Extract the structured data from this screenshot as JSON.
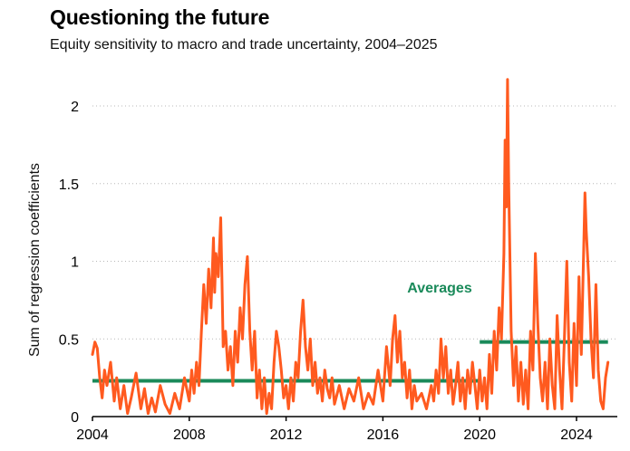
{
  "title": "Questioning the future",
  "subtitle": "Equity sensitivity to macro and trade uncertainty, 2004–2025",
  "chart_data": {
    "type": "line",
    "ylabel": "Sum of regression coefficients",
    "xlim": [
      2004,
      2025.3
    ],
    "ylim": [
      0,
      2.2
    ],
    "x_ticks": [
      2004,
      2008,
      2012,
      2016,
      2020,
      2024
    ],
    "x_tick_labels": [
      "2004",
      "2008",
      "2012",
      "2016",
      "2020",
      "2024"
    ],
    "y_ticks": [
      0,
      0.5,
      1,
      1.5,
      2
    ],
    "y_tick_labels": [
      "0",
      "0.5",
      "1",
      "1.5",
      "2"
    ],
    "grid": "horizontal dotted",
    "annotation": "Averages",
    "colors": {
      "series": "#ff5a1f",
      "averages": "#1a8a5a",
      "annotation": "#1a8a5a"
    },
    "series": [
      {
        "x": [
          2004.0,
          2004.1,
          2004.2,
          2004.3,
          2004.4,
          2004.5,
          2004.6,
          2004.75,
          2004.9,
          2005.0,
          2005.15,
          2005.3,
          2005.45,
          2005.6,
          2005.8,
          2006.0,
          2006.15,
          2006.3,
          2006.45,
          2006.6,
          2006.8,
          2007.0,
          2007.2,
          2007.4,
          2007.6,
          2007.8,
          2008.0,
          2008.1,
          2008.2,
          2008.3,
          2008.4,
          2008.5,
          2008.6,
          2008.7,
          2008.8,
          2008.9,
          2009.0,
          2009.05,
          2009.1,
          2009.2,
          2009.3,
          2009.35,
          2009.4,
          2009.5,
          2009.6,
          2009.7,
          2009.8,
          2009.9,
          2010.0,
          2010.1,
          2010.2,
          2010.3,
          2010.4,
          2010.5,
          2010.6,
          2010.7,
          2010.8,
          2010.9,
          2011.0,
          2011.1,
          2011.2,
          2011.3,
          2011.4,
          2011.5,
          2011.6,
          2011.7,
          2011.8,
          2011.9,
          2012.0,
          2012.1,
          2012.2,
          2012.3,
          2012.4,
          2012.5,
          2012.6,
          2012.7,
          2012.8,
          2012.9,
          2013.0,
          2013.1,
          2013.2,
          2013.3,
          2013.4,
          2013.5,
          2013.6,
          2013.7,
          2013.8,
          2013.9,
          2014.0,
          2014.2,
          2014.4,
          2014.6,
          2014.8,
          2015.0,
          2015.2,
          2015.4,
          2015.6,
          2015.8,
          2016.0,
          2016.15,
          2016.3,
          2016.4,
          2016.5,
          2016.6,
          2016.7,
          2016.8,
          2016.9,
          2017.0,
          2017.1,
          2017.2,
          2017.3,
          2017.4,
          2017.6,
          2017.8,
          2018.0,
          2018.1,
          2018.2,
          2018.3,
          2018.4,
          2018.5,
          2018.6,
          2018.7,
          2018.8,
          2018.9,
          2019.0,
          2019.1,
          2019.2,
          2019.3,
          2019.4,
          2019.5,
          2019.6,
          2019.7,
          2019.8,
          2019.9,
          2020.0,
          2020.1,
          2020.2,
          2020.3,
          2020.4,
          2020.5,
          2020.6,
          2020.7,
          2020.8,
          2020.9,
          2021.0,
          2021.05,
          2021.1,
          2021.15,
          2021.2,
          2021.3,
          2021.4,
          2021.5,
          2021.6,
          2021.7,
          2021.8,
          2021.9,
          2022.0,
          2022.1,
          2022.2,
          2022.3,
          2022.4,
          2022.5,
          2022.6,
          2022.7,
          2022.8,
          2022.9,
          2023.0,
          2023.1,
          2023.2,
          2023.3,
          2023.4,
          2023.5,
          2023.6,
          2023.7,
          2023.8,
          2023.9,
          2024.0,
          2024.1,
          2024.2,
          2024.3,
          2024.35,
          2024.4,
          2024.5,
          2024.6,
          2024.7,
          2024.8,
          2024.9,
          2025.0,
          2025.1,
          2025.2,
          2025.3
        ],
        "values": [
          0.4,
          0.48,
          0.44,
          0.25,
          0.12,
          0.3,
          0.2,
          0.35,
          0.1,
          0.25,
          0.05,
          0.2,
          0.02,
          0.12,
          0.28,
          0.05,
          0.18,
          0.02,
          0.12,
          0.03,
          0.2,
          0.08,
          0.02,
          0.15,
          0.05,
          0.25,
          0.1,
          0.3,
          0.15,
          0.35,
          0.2,
          0.55,
          0.85,
          0.6,
          0.95,
          0.7,
          1.15,
          0.8,
          1.05,
          0.9,
          1.28,
          0.9,
          0.45,
          0.55,
          0.3,
          0.45,
          0.2,
          0.55,
          0.35,
          0.7,
          0.5,
          0.85,
          1.03,
          0.55,
          0.3,
          0.55,
          0.12,
          0.3,
          0.05,
          0.25,
          0.02,
          0.15,
          0.05,
          0.35,
          0.55,
          0.45,
          0.3,
          0.12,
          0.2,
          0.05,
          0.25,
          0.1,
          0.35,
          0.25,
          0.55,
          0.75,
          0.45,
          0.3,
          0.5,
          0.2,
          0.35,
          0.15,
          0.25,
          0.1,
          0.3,
          0.18,
          0.12,
          0.25,
          0.08,
          0.2,
          0.05,
          0.18,
          0.1,
          0.25,
          0.05,
          0.15,
          0.08,
          0.3,
          0.1,
          0.45,
          0.2,
          0.5,
          0.65,
          0.35,
          0.55,
          0.25,
          0.35,
          0.12,
          0.3,
          0.05,
          0.2,
          0.1,
          0.15,
          0.05,
          0.2,
          0.1,
          0.3,
          0.15,
          0.5,
          0.25,
          0.45,
          0.15,
          0.3,
          0.08,
          0.2,
          0.35,
          0.1,
          0.25,
          0.05,
          0.3,
          0.15,
          0.35,
          0.2,
          0.05,
          0.3,
          0.1,
          0.25,
          0.05,
          0.4,
          0.15,
          0.55,
          0.3,
          0.7,
          0.5,
          1.05,
          1.78,
          1.35,
          2.17,
          1.5,
          0.55,
          0.2,
          0.45,
          0.1,
          0.35,
          0.08,
          0.3,
          0.05,
          0.55,
          0.3,
          1.05,
          0.6,
          0.25,
          0.1,
          0.35,
          0.05,
          0.5,
          0.2,
          0.05,
          0.65,
          0.3,
          0.05,
          0.5,
          1.0,
          0.35,
          0.1,
          0.6,
          0.2,
          0.9,
          0.4,
          1.1,
          1.44,
          1.2,
          0.9,
          0.5,
          0.25,
          0.85,
          0.3,
          0.1,
          0.05,
          0.25,
          0.35
        ]
      }
    ],
    "averages": [
      {
        "x": [
          2004,
          2020
        ],
        "value": 0.23
      },
      {
        "x": [
          2020,
          2025.3
        ],
        "value": 0.48
      }
    ]
  }
}
